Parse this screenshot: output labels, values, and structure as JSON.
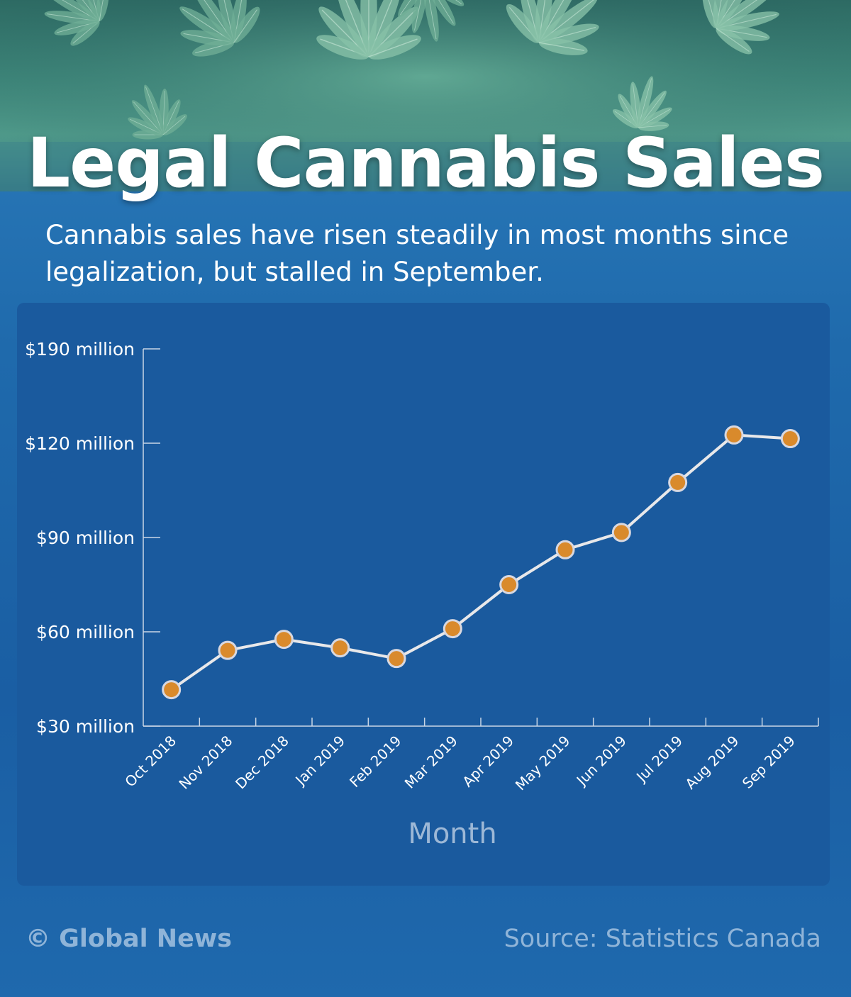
{
  "header": {
    "title": "Legal Cannabis Sales",
    "subtitle": "Cannabis sales have risen steadily in most months since legalization, but stalled in September."
  },
  "footer": {
    "credit": "© Global News",
    "source": "Source: Statistics Canada"
  },
  "colors": {
    "line": "#e8e8ea",
    "marker_fill": "#d98a2c",
    "marker_stroke": "#d8d8e0",
    "axis": "#c9d6e6"
  },
  "chart_data": {
    "type": "line",
    "xlabel": "Month",
    "ylabel": "",
    "y_ticks": [
      {
        "value": 30,
        "label": "$30 million"
      },
      {
        "value": 60,
        "label": "$60 million"
      },
      {
        "value": 90,
        "label": "$90 million"
      },
      {
        "value": 120,
        "label": "$120 million"
      },
      {
        "value": 190,
        "label": "$190 million"
      }
    ],
    "y_scale_note": "axis is evenly spaced between printed ticks",
    "categories": [
      "Oct 2018",
      "Nov 2018",
      "Dec 2018",
      "Jan 2019",
      "Feb 2019",
      "Mar 2019",
      "Apr 2019",
      "May 2019",
      "Jun 2019",
      "Jul 2019",
      "Aug 2019",
      "Sep 2019"
    ],
    "series": [
      {
        "values": [
          41.6,
          54.1,
          57.6,
          54.9,
          51.5,
          61.0,
          75.0,
          86.1,
          91.6,
          107.5,
          126.1,
          123.4
        ]
      }
    ],
    "grid": false,
    "legend": "none"
  }
}
